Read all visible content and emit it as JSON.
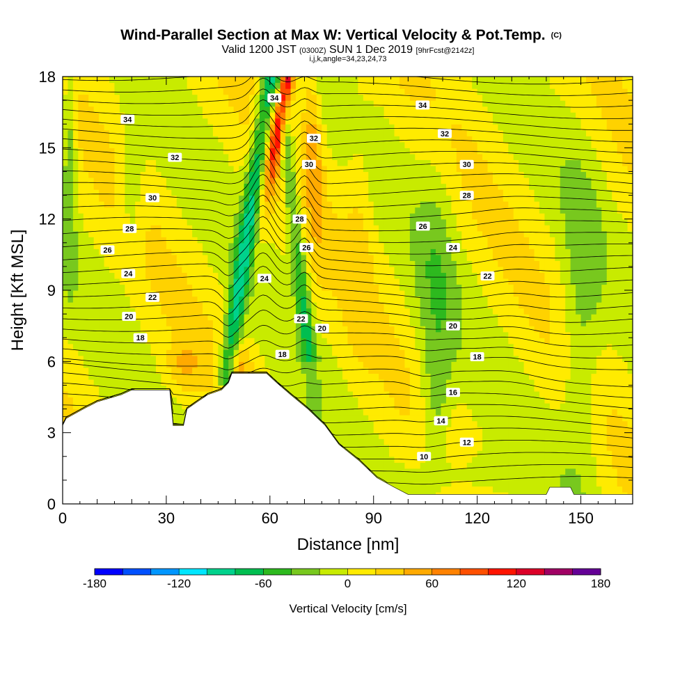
{
  "title": {
    "main": "Wind-Parallel Section at Max W: Vertical Velocity & Pot.Temp.",
    "copyright": "(C)",
    "valid_pre": "Valid 1200 JST",
    "valid_utc": "(0300Z)",
    "valid_post": "SUN 1 Dec 2019",
    "forecast": "[9hrFcst@2142z]",
    "indices": "i,j,k,angle=34,23,24,73"
  },
  "chart_data": {
    "type": "heatmap",
    "xlabel": "Distance [nm]",
    "ylabel": "Height [Kft MSL]",
    "xlim": [
      0,
      165
    ],
    "ylim": [
      0,
      18
    ],
    "x_ticks": [
      "0",
      "30",
      "60",
      "90",
      "120",
      "150"
    ],
    "y_ticks": [
      "0",
      "3",
      "6",
      "9",
      "12",
      "15",
      "18"
    ],
    "x_tick_values": [
      0,
      30,
      60,
      90,
      120,
      150
    ],
    "y_tick_values": [
      0,
      3,
      6,
      9,
      12,
      15,
      18
    ],
    "colorbar": {
      "label": "Vertical Velocity [cm/s]",
      "ticks": [
        "-180",
        "-120",
        "-60",
        "0",
        "60",
        "120",
        "180"
      ],
      "tick_values": [
        -180,
        -120,
        -60,
        0,
        60,
        120,
        180
      ],
      "range": [
        -180,
        180
      ],
      "step": 20,
      "colors": [
        "#0000ff",
        "#0050ff",
        "#0096ff",
        "#00e6ff",
        "#00d28c",
        "#00be50",
        "#2db91e",
        "#78c81e",
        "#c8eb00",
        "#ffeb00",
        "#ffd200",
        "#ffaa00",
        "#ff8200",
        "#ff5000",
        "#ff1400",
        "#dc0028",
        "#a00064",
        "#640096"
      ]
    },
    "potential_temperature_contours": {
      "levels": [
        10,
        12,
        14,
        16,
        18,
        20,
        22,
        24,
        26,
        28,
        30,
        32,
        34
      ],
      "labels": [
        {
          "text": "34",
          "x": 18.8,
          "y": 16.2
        },
        {
          "text": "32",
          "x": 32.5,
          "y": 14.6
        },
        {
          "text": "30",
          "x": 26.0,
          "y": 12.9
        },
        {
          "text": "28",
          "x": 19.4,
          "y": 11.6
        },
        {
          "text": "26",
          "x": 13.0,
          "y": 10.7
        },
        {
          "text": "24",
          "x": 19.0,
          "y": 9.7
        },
        {
          "text": "22",
          "x": 26.0,
          "y": 8.7
        },
        {
          "text": "20",
          "x": 19.2,
          "y": 7.9
        },
        {
          "text": "18",
          "x": 22.5,
          "y": 7.0
        },
        {
          "text": "34",
          "x": 61.3,
          "y": 17.1
        },
        {
          "text": "32",
          "x": 72.7,
          "y": 15.4
        },
        {
          "text": "30",
          "x": 71.3,
          "y": 14.3
        },
        {
          "text": "28",
          "x": 68.6,
          "y": 12.0
        },
        {
          "text": "26",
          "x": 70.6,
          "y": 10.8
        },
        {
          "text": "24",
          "x": 58.4,
          "y": 9.5
        },
        {
          "text": "22",
          "x": 69.0,
          "y": 7.8
        },
        {
          "text": "20",
          "x": 75.1,
          "y": 7.4
        },
        {
          "text": "18",
          "x": 63.6,
          "y": 6.3
        },
        {
          "text": "34",
          "x": 104.2,
          "y": 16.8
        },
        {
          "text": "32",
          "x": 110.6,
          "y": 15.6
        },
        {
          "text": "30",
          "x": 117.0,
          "y": 14.3
        },
        {
          "text": "28",
          "x": 117.0,
          "y": 13.0
        },
        {
          "text": "26",
          "x": 104.3,
          "y": 11.7
        },
        {
          "text": "24",
          "x": 113.0,
          "y": 10.8
        },
        {
          "text": "22",
          "x": 123.0,
          "y": 9.6
        },
        {
          "text": "20",
          "x": 113.0,
          "y": 7.5
        },
        {
          "text": "18",
          "x": 120.0,
          "y": 6.2
        },
        {
          "text": "16",
          "x": 113.0,
          "y": 4.7
        },
        {
          "text": "14",
          "x": 109.5,
          "y": 3.5
        },
        {
          "text": "12",
          "x": 117.0,
          "y": 2.6
        },
        {
          "text": "10",
          "x": 104.6,
          "y": 2.0
        }
      ]
    },
    "terrain": [
      [
        0,
        3.3
      ],
      [
        1,
        3.6
      ],
      [
        6,
        4.0
      ],
      [
        10,
        4.3
      ],
      [
        17,
        4.6
      ],
      [
        20,
        4.8
      ],
      [
        31,
        4.8
      ],
      [
        32,
        3.3
      ],
      [
        35,
        3.3
      ],
      [
        36,
        4.0
      ],
      [
        39,
        4.3
      ],
      [
        42,
        4.6
      ],
      [
        46,
        4.8
      ],
      [
        48,
        5.1
      ],
      [
        49,
        5.5
      ],
      [
        59,
        5.5
      ],
      [
        62,
        5.1
      ],
      [
        66,
        4.6
      ],
      [
        71,
        4.0
      ],
      [
        76,
        3.3
      ],
      [
        80,
        2.5
      ],
      [
        86,
        1.8
      ],
      [
        91,
        1.1
      ],
      [
        96,
        0.7
      ],
      [
        100,
        0.4
      ],
      [
        140,
        0.4
      ],
      [
        141,
        0.7
      ],
      [
        147,
        0.7
      ],
      [
        148,
        0.4
      ],
      [
        165,
        0.4
      ]
    ]
  }
}
